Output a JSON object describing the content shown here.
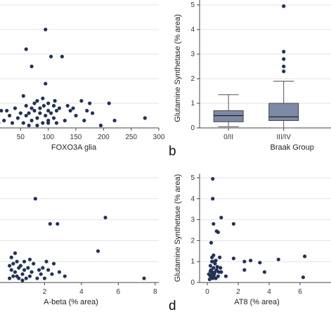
{
  "chart_data": [
    {
      "id": "a",
      "type": "scatter",
      "panel_label": "",
      "xlabel": "FOXO3A glia",
      "ylabel": "",
      "xlim": [
        0,
        300
      ],
      "ylim": [
        0,
        5.2
      ],
      "xticks": [
        "50",
        "100",
        "150",
        "200",
        "250",
        "300"
      ],
      "yticks": [],
      "grid": true,
      "points": [
        [
          95,
          4.0
        ],
        [
          60,
          3.2
        ],
        [
          105,
          2.9
        ],
        [
          125,
          2.9
        ],
        [
          70,
          2.5
        ],
        [
          55,
          1.3
        ],
        [
          95,
          1.8
        ],
        [
          5,
          0.6
        ],
        [
          40,
          0.8
        ],
        [
          15,
          0.7
        ],
        [
          80,
          1.1
        ],
        [
          90,
          1.2
        ],
        [
          100,
          1.0
        ],
        [
          110,
          0.9
        ],
        [
          60,
          0.9
        ],
        [
          75,
          0.7
        ],
        [
          85,
          0.8
        ],
        [
          65,
          0.6
        ],
        [
          95,
          0.5
        ],
        [
          120,
          0.8
        ],
        [
          140,
          0.7
        ],
        [
          160,
          1.1
        ],
        [
          175,
          1.0
        ],
        [
          180,
          0.6
        ],
        [
          210,
          1.0
        ],
        [
          220,
          0.3
        ],
        [
          275,
          0.4
        ],
        [
          195,
          0.1
        ],
        [
          20,
          0.3
        ],
        [
          30,
          0.5
        ],
        [
          45,
          0.4
        ],
        [
          55,
          0.2
        ],
        [
          70,
          0.3
        ],
        [
          80,
          0.4
        ],
        [
          90,
          0.2
        ],
        [
          100,
          0.3
        ],
        [
          110,
          0.4
        ],
        [
          115,
          0.2
        ],
        [
          130,
          0.3
        ],
        [
          150,
          0.5
        ],
        [
          50,
          0.6
        ],
        [
          35,
          0.2
        ],
        [
          25,
          0.7
        ],
        [
          60,
          0.5
        ],
        [
          85,
          0.6
        ],
        [
          105,
          0.6
        ],
        [
          135,
          0.9
        ],
        [
          165,
          0.3
        ],
        [
          170,
          0.7
        ],
        [
          10,
          0.2
        ],
        [
          75,
          1.0
        ],
        [
          92,
          0.9
        ],
        [
          100,
          0.7
        ],
        [
          115,
          0.7
        ],
        [
          100,
          0.2
        ],
        [
          65,
          0.1
        ],
        [
          80,
          0.1
        ],
        [
          112,
          1.1
        ],
        [
          145,
          0.8
        ],
        [
          70,
          0.8
        ]
      ]
    },
    {
      "id": "b",
      "type": "box",
      "panel_label": "b",
      "xlabel": "Braak Group",
      "ylabel": "Glutamine Synthetase (% area)",
      "ylim": [
        0,
        5.2
      ],
      "yticks": [
        "0",
        "1",
        "2",
        "3",
        "4",
        "5"
      ],
      "grid": true,
      "categories": [
        "0/II",
        "III/IV"
      ],
      "boxes": [
        {
          "category": "0/II",
          "whisker_low": 0.05,
          "q1": 0.25,
          "median": 0.5,
          "q3": 0.7,
          "whisker_high": 1.35,
          "outliers": []
        },
        {
          "category": "III/IV",
          "whisker_low": 0.0,
          "q1": 0.3,
          "median": 0.45,
          "q3": 1.0,
          "whisker_high": 1.9,
          "outliers": [
            2.3,
            2.5,
            2.8,
            3.1,
            4.95
          ]
        }
      ]
    },
    {
      "id": "c",
      "type": "scatter",
      "panel_label": "",
      "xlabel": "A-beta (% area)",
      "ylabel": "",
      "xlim": [
        -0.8,
        8.2
      ],
      "ylim": [
        0,
        5.2
      ],
      "xticks": [
        "2",
        "4",
        "6",
        "8"
      ],
      "yticks": [],
      "grid": true,
      "points": [
        [
          1.5,
          4.0
        ],
        [
          5.3,
          3.1
        ],
        [
          2.3,
          2.8
        ],
        [
          2.7,
          2.8
        ],
        [
          4.9,
          1.5
        ],
        [
          7.4,
          0.2
        ],
        [
          3.1,
          0.3
        ],
        [
          2.5,
          0.9
        ],
        [
          2.2,
          0.6
        ],
        [
          1.8,
          0.4
        ],
        [
          1.2,
          0.3
        ],
        [
          1.0,
          0.2
        ],
        [
          0.8,
          0.4
        ],
        [
          0.6,
          0.2
        ],
        [
          0.4,
          0.5
        ],
        [
          0.3,
          0.3
        ],
        [
          0.2,
          0.6
        ],
        [
          0.5,
          1.0
        ],
        [
          0.7,
          0.8
        ],
        [
          0.9,
          0.6
        ],
        [
          1.1,
          0.7
        ],
        [
          1.3,
          0.5
        ],
        [
          1.6,
          0.2
        ],
        [
          2.0,
          0.2
        ],
        [
          1.4,
          0.9
        ],
        [
          0.1,
          0.2
        ],
        [
          0.3,
          0.9
        ],
        [
          0.6,
          0.7
        ],
        [
          1.7,
          0.6
        ],
        [
          2.4,
          0.4
        ],
        [
          0.2,
          1.2
        ],
        [
          0.4,
          1.4
        ],
        [
          0.1,
          0.8
        ],
        [
          0.8,
          0.1
        ],
        [
          1.9,
          0.7
        ],
        [
          2.8,
          0.5
        ],
        [
          1.2,
          1.1
        ],
        [
          0.5,
          0.3
        ],
        [
          0.9,
          1.0
        ],
        [
          2.1,
          1.0
        ]
      ]
    },
    {
      "id": "d",
      "type": "scatter",
      "panel_label": "d",
      "xlabel": "AT8 (% area)",
      "ylabel": "Glutamine Synthetase (% area)",
      "xlim": [
        -0.5,
        8.0
      ],
      "ylim": [
        0,
        5.2
      ],
      "xticks": [
        "0",
        "2",
        "4",
        "6"
      ],
      "yticks": [
        "0",
        "1",
        "2",
        "3",
        "4",
        "5"
      ],
      "grid": true,
      "points": [
        [
          0.35,
          4.95
        ],
        [
          0.35,
          4.0
        ],
        [
          0.9,
          3.1
        ],
        [
          0.4,
          2.8
        ],
        [
          1.7,
          2.8
        ],
        [
          0.7,
          2.4
        ],
        [
          0.6,
          2.45
        ],
        [
          0.25,
          1.9
        ],
        [
          0.3,
          1.2
        ],
        [
          0.4,
          1.3
        ],
        [
          0.8,
          1.2
        ],
        [
          1.7,
          1.15
        ],
        [
          2.4,
          1.0
        ],
        [
          2.8,
          1.05
        ],
        [
          3.4,
          0.95
        ],
        [
          4.6,
          1.1
        ],
        [
          6.3,
          1.25
        ],
        [
          6.2,
          0.25
        ],
        [
          3.7,
          0.5
        ],
        [
          2.4,
          0.6
        ],
        [
          1.2,
          0.3
        ],
        [
          0.9,
          0.5
        ],
        [
          0.2,
          0.3
        ],
        [
          0.3,
          0.5
        ],
        [
          0.4,
          0.7
        ],
        [
          0.5,
          0.9
        ],
        [
          0.2,
          0.8
        ],
        [
          0.3,
          1.0
        ],
        [
          0.45,
          0.4
        ],
        [
          0.55,
          0.2
        ],
        [
          0.15,
          0.15
        ],
        [
          0.6,
          0.6
        ],
        [
          0.7,
          0.3
        ],
        [
          0.25,
          0.6
        ],
        [
          0.35,
          0.2
        ],
        [
          0.5,
          0.5
        ],
        [
          0.4,
          1.0
        ],
        [
          0.3,
          0.35
        ],
        [
          0.65,
          0.75
        ],
        [
          0.2,
          0.55
        ],
        [
          0.45,
          0.25
        ],
        [
          0.55,
          1.05
        ],
        [
          0.1,
          0.4
        ],
        [
          0.75,
          0.5
        ],
        [
          0.85,
          0.7
        ]
      ]
    }
  ]
}
